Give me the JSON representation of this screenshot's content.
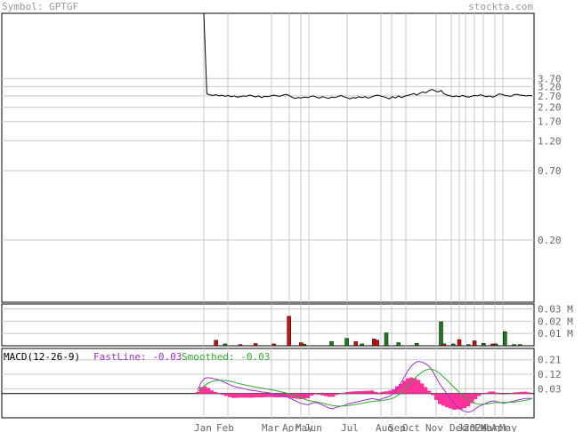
{
  "header": {
    "symbol_label": "Symbol: GPTGF",
    "site_label": "stockta.com"
  },
  "colors": {
    "price_line": "#000000",
    "grid": "#c8c8c8",
    "axis_text": "#666666",
    "header_text": "#999999",
    "volume_up": "#1f7a1f",
    "volume_down": "#cc1111",
    "macd_fast": "#9933cc",
    "macd_smoothed": "#33aa33",
    "macd_hist": "#ff3399"
  },
  "chart_data": [
    {
      "type": "line",
      "name": "price",
      "scale": "log",
      "y_ticks": [
        "3.70",
        "3.20",
        "2.70",
        "2.20",
        "1.70",
        "1.20",
        "0.70",
        "0.20"
      ],
      "y_tick_values": [
        3.7,
        3.2,
        2.7,
        2.2,
        1.7,
        1.2,
        0.7,
        0.2
      ],
      "ylim": [
        0.065,
        12
      ],
      "x_labels": [
        "Jan",
        "Feb",
        "Mar",
        "Apr",
        "May",
        "Jun",
        "Jul",
        "Aug",
        "Sep",
        "Oct",
        "Nov",
        "Dec",
        "Jan",
        "2024",
        "Feb",
        "Mar",
        "Apr",
        "May"
      ],
      "grid": true,
      "series": [
        {
          "values": [
            12,
            2.8,
            2.75,
            2.72,
            2.76,
            2.7,
            2.73,
            2.68,
            2.72,
            2.66,
            2.7,
            2.64,
            2.66,
            2.7,
            2.68,
            2.74,
            2.7,
            2.65,
            2.7,
            2.62,
            2.68,
            2.66,
            2.7,
            2.74,
            2.7,
            2.68,
            2.74,
            2.78,
            2.72,
            2.64,
            2.58,
            2.62,
            2.6,
            2.64,
            2.62,
            2.66,
            2.7,
            2.64,
            2.6,
            2.66,
            2.62,
            2.58,
            2.64,
            2.62,
            2.66,
            2.72,
            2.66,
            2.62,
            2.56,
            2.62,
            2.6,
            2.66,
            2.62,
            2.66,
            2.6,
            2.64,
            2.7,
            2.74,
            2.7,
            2.66,
            2.62,
            2.56,
            2.66,
            2.6,
            2.7,
            2.62,
            2.68,
            2.72,
            2.76,
            2.82,
            2.74,
            2.84,
            2.9,
            2.86,
            2.96,
            3.04,
            2.96,
            2.9,
            2.98,
            2.8,
            2.74,
            2.7,
            2.66,
            2.7,
            2.66,
            2.72,
            2.68,
            2.64,
            2.68,
            2.72,
            2.7,
            2.76,
            2.7,
            2.66,
            2.7,
            2.64,
            2.7,
            2.8,
            2.78,
            2.72,
            2.7,
            2.68,
            2.76,
            2.78,
            2.74,
            2.72,
            2.7,
            2.72,
            2.7
          ]
        }
      ]
    },
    {
      "type": "bar",
      "name": "volume",
      "y_ticks": [
        "0.03 M",
        "0.02 M",
        "0.01 M"
      ],
      "y_tick_values": [
        0.03,
        0.02,
        0.01
      ],
      "ylim": [
        0,
        0.034
      ],
      "series": [
        {
          "name": "up",
          "color": "#1f7a1f",
          "points": [
            [
              7,
              0.0015
            ],
            [
              33,
              0.0013
            ],
            [
              42,
              0.0035
            ],
            [
              47,
              0.006
            ],
            [
              52,
              0.0015
            ],
            [
              60,
              0.0105
            ],
            [
              64,
              0.0025
            ],
            [
              70,
              0.002
            ],
            [
              78,
              0.0195
            ],
            [
              82,
              0.0015
            ],
            [
              87,
              0.001
            ],
            [
              92,
              0.002
            ],
            [
              96,
              0.0015
            ],
            [
              99,
              0.0115
            ],
            [
              102,
              0.001
            ],
            [
              104,
              0.001
            ]
          ]
        },
        {
          "name": "down",
          "color": "#cc1111",
          "points": [
            [
              4,
              0.0045
            ],
            [
              12,
              0.001
            ],
            [
              17,
              0.0018
            ],
            [
              23,
              0.0015
            ],
            [
              28,
              0.024
            ],
            [
              32,
              0.0025
            ],
            [
              50,
              0.0035
            ],
            [
              56,
              0.0055
            ],
            [
              57,
              0.0045
            ],
            [
              79,
              0.0015
            ],
            [
              84,
              0.005
            ],
            [
              89,
              0.004
            ],
            [
              95,
              0.0015
            ]
          ]
        }
      ]
    },
    {
      "type": "line",
      "name": "macd",
      "title": "MACD(12-26-9)",
      "legend": [
        {
          "label": "FastLine: -0.03",
          "color": "#9933cc"
        },
        {
          "label": "Smoothed: -0.03",
          "color": "#33aa33"
        }
      ],
      "y_ticks": [
        "0.21",
        "0.12",
        "0.03"
      ],
      "y_tick_values": [
        0.21,
        0.12,
        0.03
      ],
      "ylim": [
        -0.15,
        0.28
      ],
      "zero_line": 0.0,
      "series": [
        {
          "name": "FastLine",
          "color": "#9933cc",
          "values": [
            0.02,
            0.07,
            0.095,
            0.1,
            0.095,
            0.09,
            0.085,
            0.075,
            0.065,
            0.055,
            0.045,
            0.04,
            0.035,
            0.03,
            0.025,
            0.02,
            0.018,
            0.015,
            0.01,
            0.008,
            0.005,
            0.0,
            -0.005,
            -0.01,
            -0.015,
            -0.02,
            -0.03,
            -0.04,
            -0.05,
            -0.06,
            -0.065,
            -0.07,
            -0.06,
            -0.055,
            -0.06,
            -0.07,
            -0.08,
            -0.09,
            -0.095,
            -0.085,
            -0.08,
            -0.075,
            -0.065,
            -0.06,
            -0.055,
            -0.05,
            -0.045,
            -0.04,
            -0.035,
            -0.03,
            -0.035,
            -0.04,
            -0.03,
            -0.025,
            -0.015,
            0.0,
            0.03,
            0.06,
            0.1,
            0.14,
            0.17,
            0.19,
            0.2,
            0.195,
            0.185,
            0.17,
            0.14,
            0.1,
            0.06,
            0.03,
            0.0,
            -0.03,
            -0.06,
            -0.08,
            -0.1,
            -0.11,
            -0.115,
            -0.11,
            -0.095,
            -0.08,
            -0.07,
            -0.06,
            -0.05,
            -0.045,
            -0.05,
            -0.055,
            -0.06,
            -0.055,
            -0.05,
            -0.045,
            -0.04,
            -0.035,
            -0.03,
            -0.03,
            -0.03
          ]
        },
        {
          "name": "Smoothed",
          "color": "#33aa33",
          "values": [
            0.01,
            0.03,
            0.05,
            0.065,
            0.075,
            0.08,
            0.082,
            0.082,
            0.08,
            0.077,
            0.072,
            0.066,
            0.06,
            0.055,
            0.05,
            0.046,
            0.042,
            0.038,
            0.034,
            0.03,
            0.026,
            0.022,
            0.018,
            0.013,
            0.008,
            0.003,
            -0.003,
            -0.01,
            -0.018,
            -0.026,
            -0.034,
            -0.042,
            -0.047,
            -0.05,
            -0.054,
            -0.059,
            -0.064,
            -0.07,
            -0.075,
            -0.077,
            -0.078,
            -0.077,
            -0.075,
            -0.072,
            -0.069,
            -0.065,
            -0.061,
            -0.057,
            -0.053,
            -0.049,
            -0.046,
            -0.045,
            -0.042,
            -0.039,
            -0.034,
            -0.027,
            -0.015,
            0.0,
            0.02,
            0.045,
            0.07,
            0.095,
            0.115,
            0.132,
            0.145,
            0.152,
            0.15,
            0.14,
            0.125,
            0.105,
            0.085,
            0.062,
            0.04,
            0.018,
            -0.002,
            -0.02,
            -0.036,
            -0.05,
            -0.06,
            -0.065,
            -0.066,
            -0.065,
            -0.062,
            -0.058,
            -0.056,
            -0.055,
            -0.055,
            -0.055,
            -0.054,
            -0.052,
            -0.049,
            -0.046,
            -0.042,
            -0.038,
            -0.03
          ]
        },
        {
          "name": "histogram",
          "color": "#ff3399",
          "type": "bar",
          "values": [
            0.01,
            0.04,
            0.045,
            0.035,
            0.02,
            0.01,
            0.003,
            -0.007,
            -0.015,
            -0.022,
            -0.027,
            -0.026,
            -0.025,
            -0.025,
            -0.025,
            -0.026,
            -0.024,
            -0.023,
            -0.024,
            -0.022,
            -0.021,
            -0.022,
            -0.023,
            -0.023,
            -0.023,
            -0.023,
            -0.027,
            -0.03,
            -0.032,
            -0.034,
            -0.031,
            -0.028,
            -0.013,
            -0.005,
            -0.006,
            -0.011,
            -0.016,
            -0.02,
            -0.02,
            -0.008,
            -0.002,
            0.002,
            0.01,
            0.012,
            0.014,
            0.015,
            0.016,
            0.017,
            0.018,
            0.019,
            0.011,
            0.005,
            0.012,
            0.014,
            0.019,
            0.027,
            0.045,
            0.06,
            0.08,
            0.095,
            0.1,
            0.095,
            0.085,
            0.063,
            0.04,
            0.018,
            -0.01,
            -0.04,
            -0.065,
            -0.075,
            -0.085,
            -0.092,
            -0.1,
            -0.098,
            -0.098,
            -0.09,
            -0.079,
            -0.06,
            -0.035,
            -0.015,
            -0.004,
            0.005,
            0.012,
            0.013,
            0.006,
            0.0,
            -0.005,
            0.0,
            0.004,
            0.007,
            0.009,
            0.011,
            0.012,
            0.008,
            0.0
          ]
        }
      ]
    }
  ]
}
